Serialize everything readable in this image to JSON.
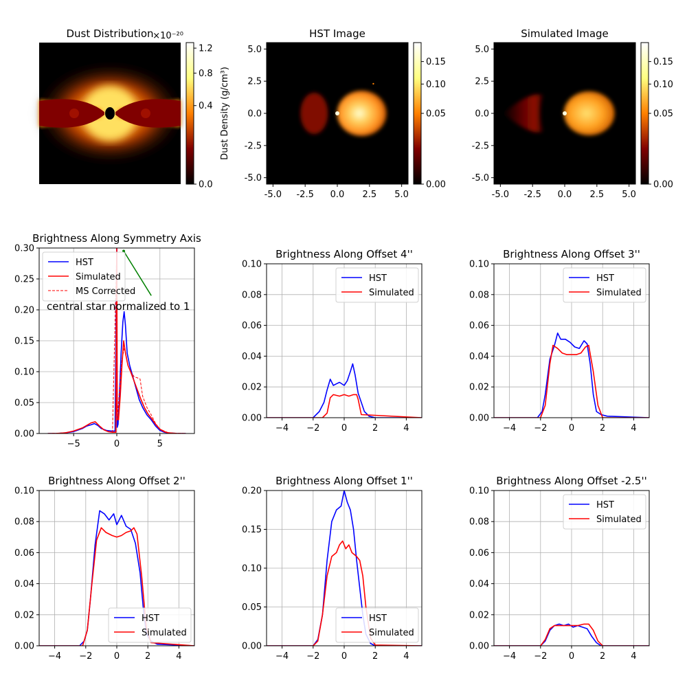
{
  "colors": {
    "hst": "#0000ff",
    "simulated": "#ff0000",
    "ms_corrected": "#ff0000",
    "annotation": "#008000",
    "grid": "#b0b0b0"
  },
  "chart_data": [
    {
      "type": "heatmap",
      "title": "Dust Distribution",
      "colormap": "afmhot",
      "colorbar": {
        "label": "Dust Density (g/cm³)",
        "exponent": "×10⁻²⁰",
        "ticks": [
          "1.2",
          "0.8",
          "0.4",
          "0.0"
        ],
        "tick_values": [
          1.2,
          0.8,
          0.4,
          0.0
        ],
        "scale": "sqrt",
        "vmax": 1.3
      },
      "axes_visible": false
    },
    {
      "type": "heatmap",
      "title": "HST Image",
      "colormap": "afmhot",
      "xticks": [
        "-5.0",
        "-2.5",
        "0.0",
        "2.5",
        "5.0"
      ],
      "yticks": [
        "5.0",
        "2.5",
        "0.0",
        "-2.5",
        "-5.0"
      ],
      "xlim": [
        -5.5,
        5.5
      ],
      "ylim": [
        -5.5,
        5.5
      ],
      "colorbar": {
        "ticks": [
          "0.15",
          "0.10",
          "0.05",
          "0.00"
        ],
        "tick_values": [
          0.15,
          0.1,
          0.05,
          0.0
        ],
        "scale": "sqrt",
        "vmax": 0.2
      }
    },
    {
      "type": "heatmap",
      "title": "Simulated Image",
      "colormap": "afmhot",
      "xticks": [
        "-5.0",
        "-2.5",
        "0.0",
        "2.5",
        "5.0"
      ],
      "yticks": [
        "5.0",
        "2.5",
        "0.0",
        "-2.5",
        "-5.0"
      ],
      "xlim": [
        -5.5,
        5.5
      ],
      "ylim": [
        -5.5,
        5.5
      ],
      "colorbar": {
        "ticks": [
          "0.15",
          "0.10",
          "0.05",
          "0.00"
        ],
        "tick_values": [
          0.15,
          0.1,
          0.05,
          0.0
        ],
        "scale": "sqrt",
        "vmax": 0.2
      }
    },
    {
      "type": "line",
      "title": "Brightness Along Symmetry Axis",
      "xlim": [
        -9,
        9
      ],
      "ylim": [
        0,
        0.3
      ],
      "xticks": [
        -5,
        0,
        5
      ],
      "yticks": [
        0.0,
        0.05,
        0.1,
        0.15,
        0.2,
        0.25,
        0.3
      ],
      "ytick_labels": [
        "0.00",
        "0.05",
        "0.10",
        "0.15",
        "0.20",
        "0.25",
        "0.30"
      ],
      "grid": true,
      "legend": "upper-left",
      "annotation": {
        "text": "central star normalized to 1",
        "arrow_from": [
          4.0,
          0.223
        ],
        "arrow_to": [
          0.8,
          0.295
        ]
      },
      "series": [
        {
          "name": "HST",
          "x": [
            -8,
            -7,
            -6,
            -5,
            -4,
            -3.5,
            -3,
            -2.6,
            -2.2,
            -1.8,
            -1.2,
            -0.6,
            -0.2,
            0.0,
            0.05,
            0.15,
            0.3,
            0.5,
            0.7,
            0.85,
            1.0,
            1.2,
            1.5,
            1.8,
            2.2,
            2.6,
            3.0,
            3.5,
            4.0,
            4.5,
            5.0,
            5.5,
            6,
            7,
            8
          ],
          "y": [
            0.0,
            0.0,
            0.001,
            0.003,
            0.008,
            0.012,
            0.014,
            0.016,
            0.013,
            0.008,
            0.005,
            0.004,
            0.004,
            0.3,
            0.01,
            0.015,
            0.06,
            0.13,
            0.18,
            0.197,
            0.175,
            0.13,
            0.11,
            0.095,
            0.075,
            0.055,
            0.042,
            0.03,
            0.022,
            0.012,
            0.005,
            0.002,
            0.001,
            0.0,
            0.0
          ]
        },
        {
          "name": "Simulated",
          "x": [
            -8,
            -7,
            -6,
            -5,
            -4,
            -3.5,
            -3,
            -2.5,
            -2,
            -1.5,
            -1,
            -0.5,
            -0.1,
            0.0,
            0.05,
            0.2,
            0.4,
            0.6,
            0.8,
            1.0,
            1.3,
            1.6,
            2.0,
            2.4,
            2.8,
            3.2,
            3.6,
            4.0,
            4.5,
            5.0,
            5.5,
            6,
            7,
            8
          ],
          "y": [
            0.0,
            0.0,
            0.001,
            0.004,
            0.009,
            0.013,
            0.017,
            0.019,
            0.012,
            0.006,
            0.003,
            0.002,
            0.002,
            0.3,
            0.03,
            0.022,
            0.06,
            0.11,
            0.15,
            0.13,
            0.11,
            0.1,
            0.085,
            0.07,
            0.055,
            0.042,
            0.032,
            0.025,
            0.015,
            0.007,
            0.003,
            0.001,
            0.0,
            0.0
          ]
        },
        {
          "name": "MS Corrected",
          "x": [
            -8,
            -6,
            -5,
            -4,
            -3,
            -2.5,
            -2,
            -1.5,
            -1,
            -0.5,
            0.0,
            0.05,
            0.3,
            0.6,
            0.9,
            1.2,
            1.6,
            2.0,
            2.4,
            2.7,
            3.0,
            3.5,
            4.0,
            4.5,
            5.0,
            6,
            8
          ],
          "y": [
            0.0,
            0.001,
            0.004,
            0.009,
            0.017,
            0.019,
            0.012,
            0.006,
            0.003,
            0.002,
            0.3,
            0.02,
            0.07,
            0.12,
            0.14,
            0.115,
            0.1,
            0.092,
            0.09,
            0.088,
            0.06,
            0.042,
            0.03,
            0.016,
            0.007,
            0.001,
            0.0
          ]
        }
      ]
    },
    {
      "type": "line",
      "title": "Brightness Along Offset 4''",
      "xlim": [
        -5,
        5
      ],
      "ylim": [
        0,
        0.1
      ],
      "xticks": [
        -4,
        -2,
        0,
        2,
        4
      ],
      "yticks": [
        0.0,
        0.02,
        0.04,
        0.06,
        0.08,
        0.1
      ],
      "ytick_labels": [
        "0.00",
        "0.02",
        "0.04",
        "0.06",
        "0.08",
        "0.10"
      ],
      "grid": true,
      "legend": "upper-right",
      "series": [
        {
          "name": "HST",
          "x": [
            -5,
            -2.0,
            -1.6,
            -1.3,
            -1.1,
            -0.9,
            -0.7,
            -0.5,
            -0.3,
            0.0,
            0.2,
            0.4,
            0.55,
            0.7,
            0.9,
            1.1,
            1.3,
            1.6,
            2.0,
            5
          ],
          "y": [
            0.0,
            0.0,
            0.004,
            0.01,
            0.018,
            0.025,
            0.021,
            0.022,
            0.023,
            0.021,
            0.024,
            0.03,
            0.035,
            0.028,
            0.016,
            0.01,
            0.004,
            0.001,
            0.0,
            0.0
          ]
        },
        {
          "name": "Simulated",
          "x": [
            -5,
            -1.4,
            -1.1,
            -0.9,
            -0.7,
            -0.3,
            0.0,
            0.3,
            0.6,
            0.8,
            0.9,
            1.1,
            5
          ],
          "y": [
            0.0,
            0.0,
            0.003,
            0.013,
            0.015,
            0.014,
            0.015,
            0.014,
            0.015,
            0.015,
            0.012,
            0.002,
            0.0
          ]
        }
      ]
    },
    {
      "type": "line",
      "title": "Brightness Along Offset 3''",
      "xlim": [
        -5,
        5
      ],
      "ylim": [
        0,
        0.1
      ],
      "xticks": [
        -4,
        -2,
        0,
        2,
        4
      ],
      "yticks": [
        0.0,
        0.02,
        0.04,
        0.06,
        0.08,
        0.1
      ],
      "ytick_labels": [
        "0.00",
        "0.02",
        "0.04",
        "0.06",
        "0.08",
        "0.10"
      ],
      "grid": true,
      "legend": "upper-right",
      "series": [
        {
          "name": "HST",
          "x": [
            -5,
            -2.2,
            -1.9,
            -1.7,
            -1.4,
            -1.1,
            -0.9,
            -0.7,
            -0.4,
            -0.1,
            0.2,
            0.5,
            0.8,
            1.0,
            1.2,
            1.4,
            1.6,
            1.9,
            2.3,
            5
          ],
          "y": [
            0.0,
            0.0,
            0.004,
            0.015,
            0.038,
            0.047,
            0.055,
            0.051,
            0.051,
            0.049,
            0.046,
            0.045,
            0.05,
            0.048,
            0.035,
            0.015,
            0.004,
            0.002,
            0.001,
            0.0
          ]
        },
        {
          "name": "Simulated",
          "x": [
            -5,
            -2.0,
            -1.7,
            -1.4,
            -1.2,
            -0.9,
            -0.6,
            -0.3,
            0.0,
            0.3,
            0.6,
            0.9,
            1.1,
            1.4,
            1.7,
            2.0,
            5
          ],
          "y": [
            0.0,
            0.0,
            0.008,
            0.035,
            0.047,
            0.045,
            0.042,
            0.041,
            0.041,
            0.041,
            0.042,
            0.046,
            0.047,
            0.03,
            0.008,
            0.0,
            0.0
          ]
        }
      ]
    },
    {
      "type": "line",
      "title": "Brightness Along Offset 2''",
      "xlim": [
        -5,
        5
      ],
      "ylim": [
        0,
        0.1
      ],
      "xticks": [
        -4,
        -2,
        0,
        2,
        4
      ],
      "yticks": [
        0.0,
        0.02,
        0.04,
        0.06,
        0.08,
        0.1
      ],
      "ytick_labels": [
        "0.00",
        "0.02",
        "0.04",
        "0.06",
        "0.08",
        "0.10"
      ],
      "grid": true,
      "legend": "lower-right",
      "series": [
        {
          "name": "HST",
          "x": [
            -5,
            -2.4,
            -2.1,
            -1.9,
            -1.7,
            -1.4,
            -1.1,
            -0.8,
            -0.5,
            -0.2,
            0.0,
            0.3,
            0.6,
            0.9,
            1.2,
            1.5,
            1.7,
            1.9,
            2.2,
            2.6,
            5
          ],
          "y": [
            0.0,
            0.0,
            0.003,
            0.01,
            0.03,
            0.065,
            0.087,
            0.085,
            0.081,
            0.085,
            0.078,
            0.084,
            0.077,
            0.075,
            0.066,
            0.047,
            0.025,
            0.008,
            0.003,
            0.001,
            0.0
          ]
        },
        {
          "name": "Simulated",
          "x": [
            -5,
            -2.2,
            -1.9,
            -1.6,
            -1.3,
            -1.0,
            -0.7,
            -0.3,
            0.0,
            0.3,
            0.6,
            0.9,
            1.1,
            1.3,
            1.6,
            1.9,
            2.2,
            5
          ],
          "y": [
            0.0,
            0.0,
            0.01,
            0.04,
            0.068,
            0.076,
            0.073,
            0.071,
            0.07,
            0.071,
            0.073,
            0.074,
            0.076,
            0.072,
            0.045,
            0.012,
            0.002,
            0.0
          ]
        }
      ]
    },
    {
      "type": "line",
      "title": "Brightness Along Offset 1''",
      "xlim": [
        -5,
        5
      ],
      "ylim": [
        0,
        0.2
      ],
      "xticks": [
        -4,
        -2,
        0,
        2,
        4
      ],
      "yticks": [
        0.0,
        0.05,
        0.1,
        0.15,
        0.2
      ],
      "ytick_labels": [
        "0.00",
        "0.05",
        "0.10",
        "0.15",
        "0.20"
      ],
      "grid": true,
      "legend": "lower-right",
      "series": [
        {
          "name": "HST",
          "x": [
            -5,
            -2.0,
            -1.7,
            -1.4,
            -1.1,
            -0.8,
            -0.5,
            -0.2,
            0.0,
            0.2,
            0.4,
            0.6,
            0.8,
            1.0,
            1.2,
            1.4,
            1.7,
            2.0,
            5
          ],
          "y": [
            0.0,
            0.0,
            0.008,
            0.04,
            0.11,
            0.16,
            0.175,
            0.18,
            0.2,
            0.185,
            0.175,
            0.15,
            0.11,
            0.075,
            0.04,
            0.015,
            0.003,
            0.0,
            0.0
          ]
        },
        {
          "name": "Simulated",
          "x": [
            -5,
            -2.0,
            -1.7,
            -1.4,
            -1.1,
            -0.8,
            -0.5,
            -0.3,
            -0.1,
            0.1,
            0.3,
            0.5,
            0.8,
            1.0,
            1.2,
            1.4,
            1.7,
            2.0,
            5
          ],
          "y": [
            0.0,
            0.0,
            0.006,
            0.04,
            0.09,
            0.115,
            0.12,
            0.13,
            0.135,
            0.125,
            0.13,
            0.12,
            0.115,
            0.11,
            0.09,
            0.05,
            0.01,
            0.001,
            0.0
          ]
        }
      ]
    },
    {
      "type": "line",
      "title": "Brightness Along Offset -2.5''",
      "xlim": [
        -5,
        5
      ],
      "ylim": [
        0,
        0.1
      ],
      "xticks": [
        -4,
        -2,
        0,
        2,
        4
      ],
      "yticks": [
        0.0,
        0.02,
        0.04,
        0.06,
        0.08,
        0.1
      ],
      "ytick_labels": [
        "0.00",
        "0.02",
        "0.04",
        "0.06",
        "0.08",
        "0.10"
      ],
      "grid": true,
      "legend": "upper-right",
      "series": [
        {
          "name": "HST",
          "x": [
            -5,
            -2.0,
            -1.7,
            -1.4,
            -1.1,
            -0.8,
            -0.5,
            -0.2,
            0.1,
            0.4,
            0.7,
            1.0,
            1.3,
            1.6,
            1.9,
            5
          ],
          "y": [
            0.0,
            0.0,
            0.003,
            0.01,
            0.013,
            0.014,
            0.013,
            0.014,
            0.012,
            0.013,
            0.012,
            0.011,
            0.006,
            0.002,
            0.0,
            0.0
          ]
        },
        {
          "name": "Simulated",
          "x": [
            -5,
            -2.0,
            -1.7,
            -1.4,
            -1.1,
            -0.8,
            -0.4,
            0.0,
            0.4,
            0.8,
            1.1,
            1.4,
            1.7,
            2.0,
            5
          ],
          "y": [
            0.0,
            0.0,
            0.004,
            0.011,
            0.013,
            0.013,
            0.013,
            0.013,
            0.013,
            0.014,
            0.014,
            0.01,
            0.003,
            0.0,
            0.0
          ]
        }
      ]
    }
  ]
}
